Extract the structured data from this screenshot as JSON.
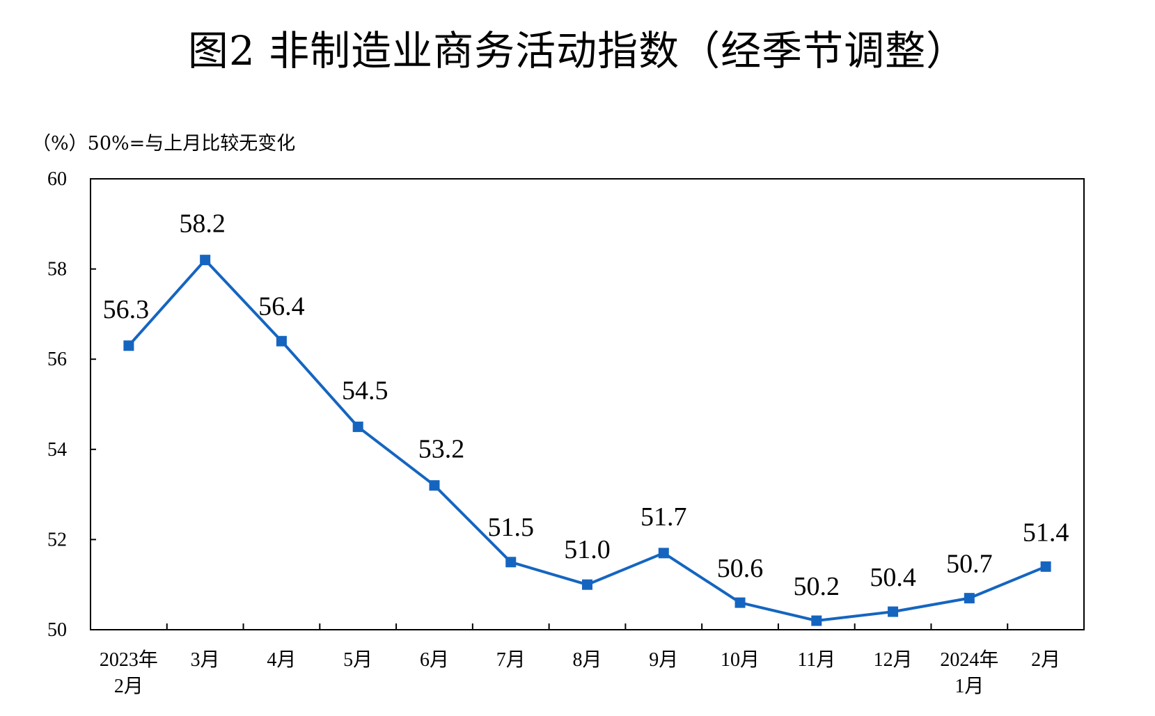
{
  "title": "图2  非制造业商务活动指数（经季节调整）",
  "unit_note": {
    "unit": "（%）",
    "reference": "50%=与上月比较无变化"
  },
  "colors": {
    "series": "#1565c0",
    "axis": "#000000"
  },
  "chart_data": {
    "type": "line",
    "title": "图2  非制造业商务活动指数（经季节调整）",
    "ylabel": "（%）",
    "xlabel": "",
    "ylim": [
      50,
      60
    ],
    "yticks": [
      50,
      52,
      54,
      56,
      58,
      60
    ],
    "grid": false,
    "legend": "none",
    "marker": "square",
    "categories": [
      [
        "2023年",
        "2月"
      ],
      [
        "3月"
      ],
      [
        "4月"
      ],
      [
        "5月"
      ],
      [
        "6月"
      ],
      [
        "7月"
      ],
      [
        "8月"
      ],
      [
        "9月"
      ],
      [
        "10月"
      ],
      [
        "11月"
      ],
      [
        "12月"
      ],
      [
        "2024年",
        "1月"
      ],
      [
        "2月"
      ]
    ],
    "series": [
      {
        "values": [
          56.3,
          58.2,
          56.4,
          54.5,
          53.2,
          51.5,
          51.0,
          51.7,
          50.6,
          50.2,
          50.4,
          50.7,
          51.4
        ],
        "labels": [
          "56.3",
          "58.2",
          "56.4",
          "54.5",
          "53.2",
          "51.5",
          "51.0",
          "51.7",
          "50.6",
          "50.2",
          "50.4",
          "50.7",
          "51.4"
        ]
      }
    ]
  }
}
